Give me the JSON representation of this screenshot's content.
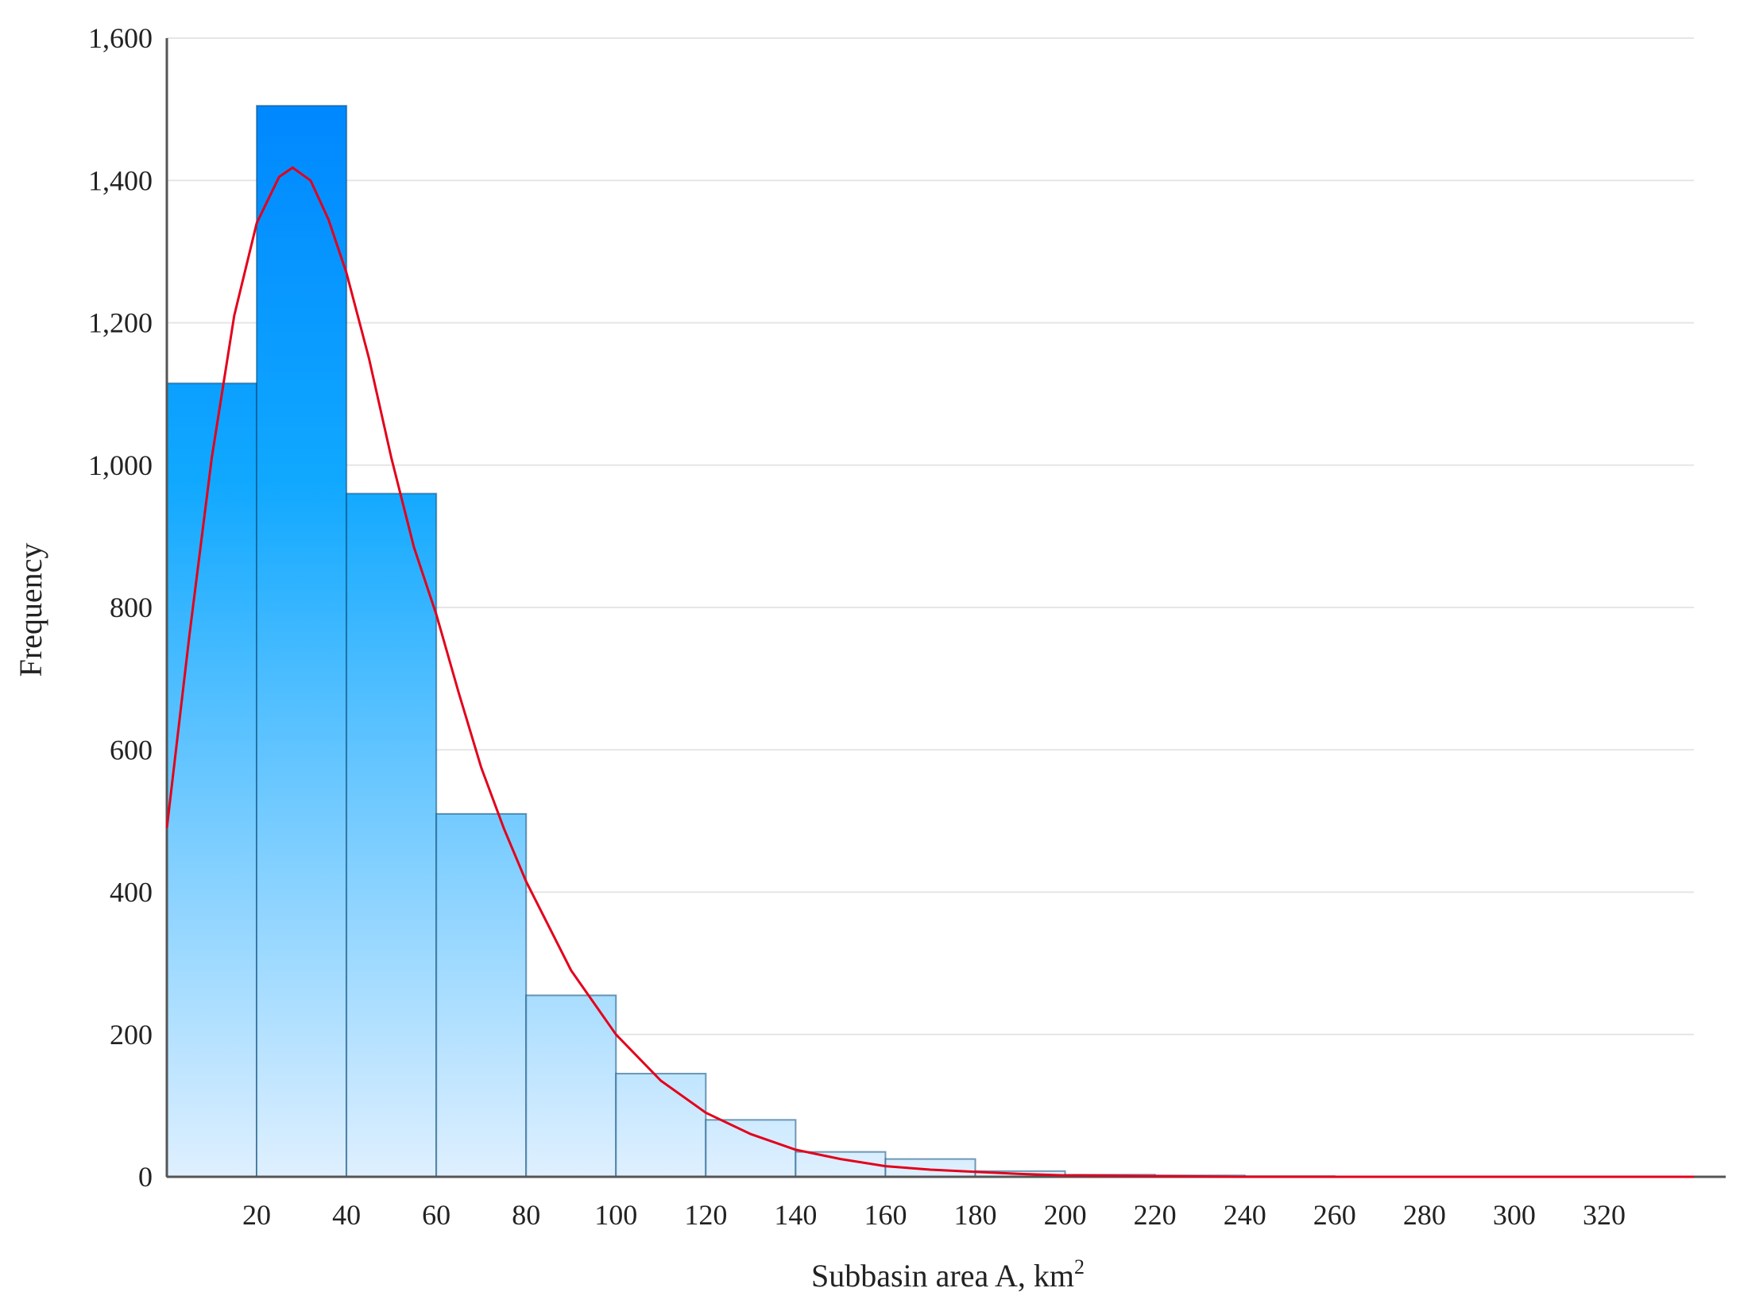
{
  "chart_data": {
    "type": "bar",
    "subtype": "histogram",
    "xlabel": "Subbasin area A, km",
    "xlabel_superscript": "2",
    "ylabel": "Frequency",
    "xlim": [
      0,
      340
    ],
    "ylim": [
      0,
      1600
    ],
    "x_ticks": [
      20,
      40,
      60,
      80,
      100,
      120,
      140,
      160,
      180,
      200,
      220,
      240,
      260,
      280,
      300,
      320
    ],
    "x_tick_labels": [
      "20",
      "40",
      "60",
      "80",
      "100",
      "120",
      "140",
      "160",
      "180",
      "200",
      "220",
      "240",
      "260",
      "280",
      "300",
      "320"
    ],
    "y_ticks": [
      0,
      200,
      400,
      600,
      800,
      1000,
      1200,
      1400,
      1600
    ],
    "y_tick_labels": [
      "0",
      "200",
      "400",
      "600",
      "800",
      "1,000",
      "1,200",
      "1,400",
      "1,600"
    ],
    "grid": "horizontal",
    "bins": [
      {
        "x0": 0,
        "x1": 20,
        "value": 1115
      },
      {
        "x0": 20,
        "x1": 40,
        "value": 1505
      },
      {
        "x0": 40,
        "x1": 60,
        "value": 960
      },
      {
        "x0": 60,
        "x1": 80,
        "value": 510
      },
      {
        "x0": 80,
        "x1": 100,
        "value": 255
      },
      {
        "x0": 100,
        "x1": 120,
        "value": 145
      },
      {
        "x0": 120,
        "x1": 140,
        "value": 80
      },
      {
        "x0": 140,
        "x1": 160,
        "value": 35
      },
      {
        "x0": 160,
        "x1": 180,
        "value": 25
      },
      {
        "x0": 180,
        "x1": 200,
        "value": 8
      },
      {
        "x0": 200,
        "x1": 220,
        "value": 3
      },
      {
        "x0": 220,
        "x1": 240,
        "value": 2
      },
      {
        "x0": 240,
        "x1": 260,
        "value": 1
      },
      {
        "x0": 260,
        "x1": 280,
        "value": 0
      },
      {
        "x0": 280,
        "x1": 300,
        "value": 0
      },
      {
        "x0": 300,
        "x1": 320,
        "value": 0
      },
      {
        "x0": 320,
        "x1": 340,
        "value": 0
      }
    ],
    "fit_curve": {
      "color": "#e3001b",
      "points": [
        [
          0,
          490
        ],
        [
          5,
          760
        ],
        [
          10,
          1010
        ],
        [
          15,
          1210
        ],
        [
          20,
          1340
        ],
        [
          25,
          1405
        ],
        [
          28,
          1418
        ],
        [
          32,
          1400
        ],
        [
          36,
          1345
        ],
        [
          40,
          1270
        ],
        [
          45,
          1150
        ],
        [
          50,
          1010
        ],
        [
          55,
          885
        ],
        [
          60,
          790
        ],
        [
          65,
          680
        ],
        [
          70,
          575
        ],
        [
          75,
          490
        ],
        [
          80,
          415
        ],
        [
          90,
          290
        ],
        [
          100,
          200
        ],
        [
          110,
          135
        ],
        [
          120,
          90
        ],
        [
          130,
          60
        ],
        [
          140,
          38
        ],
        [
          150,
          25
        ],
        [
          160,
          15
        ],
        [
          170,
          10
        ],
        [
          180,
          7
        ],
        [
          190,
          4
        ],
        [
          200,
          2
        ],
        [
          220,
          1
        ],
        [
          240,
          0
        ],
        [
          260,
          0
        ],
        [
          340,
          0
        ]
      ]
    },
    "colors": {
      "bar_top": "#0088ff",
      "bar_bottom": "#dff0ff",
      "bar_edge": "#0a4a7a",
      "curve": "#e3001b"
    }
  }
}
